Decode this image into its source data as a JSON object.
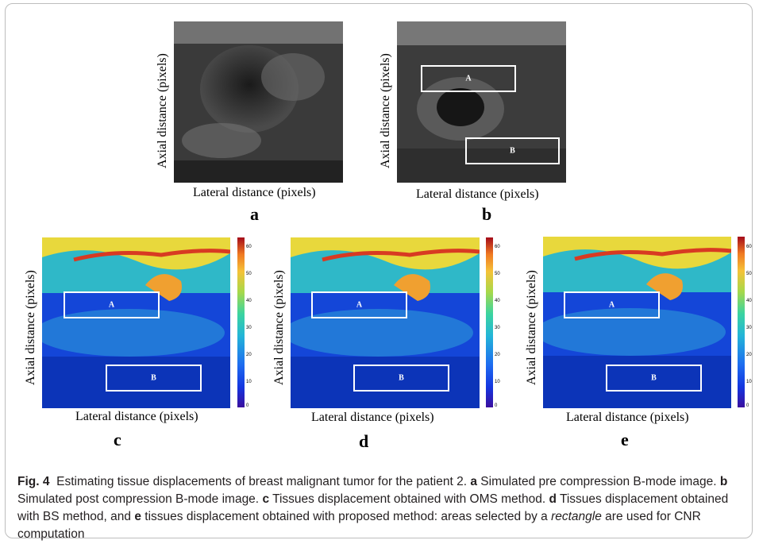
{
  "figure": {
    "axis_labels": {
      "y": "Axial distance (pixels)",
      "x": "Lateral distance (pixels)"
    },
    "panels": [
      {
        "letter": "a",
        "type": "B-mode pre compression"
      },
      {
        "letter": "b",
        "type": "B-mode post compression",
        "roi": [
          "A",
          "B"
        ]
      },
      {
        "letter": "c",
        "type": "displacement OMS",
        "roi": [
          "A",
          "B"
        ]
      },
      {
        "letter": "d",
        "type": "displacement BS",
        "roi": [
          "A",
          "B"
        ]
      },
      {
        "letter": "e",
        "type": "displacement proposed",
        "roi": [
          "A",
          "B"
        ]
      }
    ],
    "colorbar_ticks": [
      "60",
      "50",
      "40",
      "30",
      "20",
      "10",
      "0"
    ]
  },
  "caption": {
    "fig_label": "Fig. 4",
    "title": "Estimating tissue displacements of breast malignant tumor for the patient 2.",
    "a_letter": "a",
    "a_text": "Simulated pre compression B-mode image.",
    "b_letter": "b",
    "b_text": "Simulated post compression B-mode image.",
    "c_letter": "c",
    "c_text": "Tissues displacement obtained with OMS method.",
    "d_letter": "d",
    "d_text": "Tissues displacement obtained with BS method, and",
    "e_letter": "e",
    "e_text_1": "tissues displacement obtained with proposed method: areas selected by a",
    "e_italic": "rectangle",
    "e_text_2": "are used for CNR computation"
  }
}
